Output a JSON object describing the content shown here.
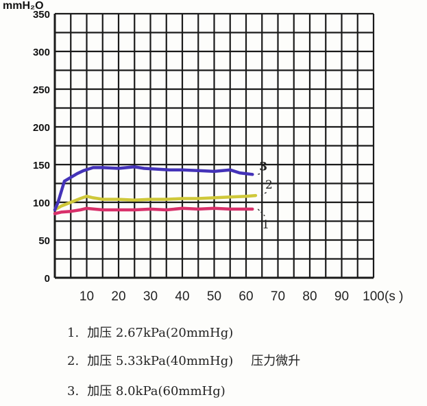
{
  "chart_data": {
    "type": "line",
    "ylabel": "mmH₂O",
    "xunit": "(s )",
    "xlim": [
      0,
      100
    ],
    "ylim": [
      0,
      350
    ],
    "xticks": [
      10,
      20,
      30,
      40,
      50,
      60,
      70,
      80,
      90,
      100
    ],
    "yticks": [
      0,
      50,
      100,
      150,
      200,
      250,
      300,
      350
    ],
    "grid": true,
    "series": [
      {
        "name": "1",
        "color": "#d8306a",
        "x": [
          0,
          2,
          5,
          8,
          10,
          15,
          20,
          25,
          30,
          35,
          40,
          45,
          50,
          55,
          60,
          62
        ],
        "y": [
          85,
          87,
          88,
          90,
          92,
          90,
          90,
          90,
          91,
          90,
          92,
          91,
          92,
          91,
          91,
          91
        ]
      },
      {
        "name": "2",
        "color": "#cfc83a",
        "x": [
          0,
          2,
          5,
          8,
          10,
          12,
          15,
          20,
          25,
          30,
          35,
          40,
          45,
          50,
          55,
          60,
          63
        ],
        "y": [
          90,
          95,
          100,
          105,
          108,
          106,
          104,
          104,
          103,
          104,
          104,
          105,
          105,
          106,
          107,
          108,
          109
        ]
      },
      {
        "name": "3",
        "color": "#4433b8",
        "x": [
          0,
          1,
          3,
          5,
          7,
          9,
          12,
          15,
          20,
          25,
          28,
          32,
          36,
          40,
          45,
          50,
          55,
          58,
          62
        ],
        "y": [
          90,
          100,
          128,
          133,
          138,
          142,
          146,
          146,
          145,
          147,
          145,
          144,
          143,
          143,
          142,
          141,
          143,
          139,
          137
        ]
      }
    ]
  },
  "legend": {
    "items": [
      {
        "num": "1.",
        "text": "加压 2.67kPa(20mmHg)",
        "note": ""
      },
      {
        "num": "2.",
        "text": "加压 5.33kPa(40mmHg)",
        "note": "压力微升"
      },
      {
        "num": "3.",
        "text": "加压 8.0kPa(60mmHg)",
        "note": ""
      }
    ]
  }
}
